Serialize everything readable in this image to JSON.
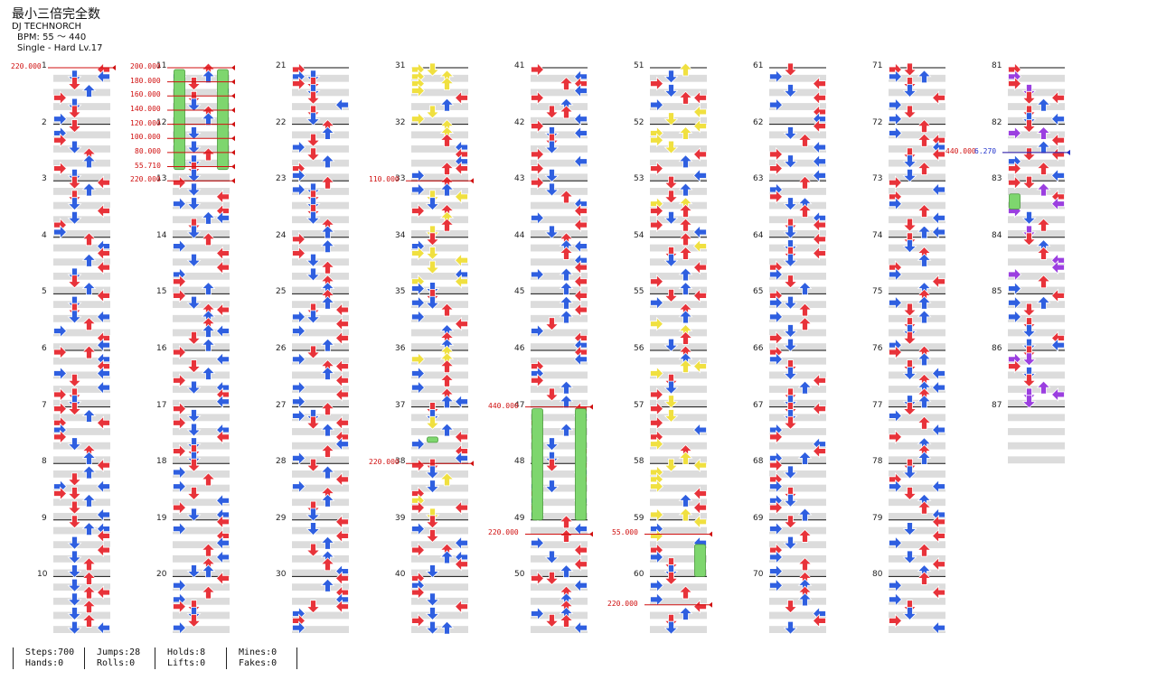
{
  "song": {
    "title": "最小三倍完全数",
    "artist": "DJ TECHNORCH",
    "bpm_text": "BPM: 55 ～ 440",
    "difficulty_text": "Single - Hard  Lv.17"
  },
  "measures": [
    "1",
    "2",
    "3",
    "4",
    "5",
    "6",
    "7",
    "8",
    "9",
    "10",
    "11",
    "12",
    "13",
    "14",
    "15",
    "16",
    "17",
    "18",
    "19",
    "20",
    "21",
    "22",
    "23",
    "24",
    "25",
    "26",
    "27",
    "28",
    "29",
    "30",
    "31",
    "32",
    "33",
    "34",
    "35",
    "36",
    "37",
    "38",
    "39",
    "40",
    "41",
    "42",
    "43",
    "44",
    "45",
    "46",
    "47",
    "48",
    "49",
    "50",
    "51",
    "52",
    "53",
    "54",
    "55",
    "56",
    "57",
    "58",
    "59",
    "60",
    "61",
    "62",
    "63",
    "64",
    "65",
    "66",
    "67",
    "68",
    "69",
    "70",
    "71",
    "72",
    "73",
    "74",
    "75",
    "76",
    "77",
    "78",
    "79",
    "80",
    "81",
    "82",
    "83",
    "84",
    "85",
    "86",
    "87"
  ],
  "bpm_changes": [
    {
      "label": "220.000",
      "measure": 0,
      "color": "red",
      "side": "left"
    },
    {
      "label": "200.000",
      "measure": 10.0,
      "color": "red",
      "side": "left"
    },
    {
      "label": "180.000",
      "measure": 10.25,
      "color": "red",
      "side": "left"
    },
    {
      "label": "160.000",
      "measure": 10.5,
      "color": "red",
      "side": "left"
    },
    {
      "label": "140.000",
      "measure": 10.75,
      "color": "red",
      "side": "left"
    },
    {
      "label": "120.000",
      "measure": 11.0,
      "color": "red",
      "side": "left"
    },
    {
      "label": "100.000",
      "measure": 11.25,
      "color": "red",
      "side": "left"
    },
    {
      "label": "80.000",
      "measure": 11.5,
      "color": "red",
      "side": "left"
    },
    {
      "label": "55.710",
      "measure": 11.75,
      "color": "red",
      "side": "left"
    },
    {
      "label": "220.000",
      "measure": 12.0,
      "color": "red",
      "side": "left"
    },
    {
      "label": "110.000",
      "measure": 32.0,
      "color": "red",
      "side": "left"
    },
    {
      "label": "220.000",
      "measure": 37.0,
      "color": "red",
      "side": "left"
    },
    {
      "label": "440.000",
      "measure": 46.0,
      "color": "red",
      "side": "left"
    },
    {
      "label": "220.000",
      "measure": 48.25,
      "color": "red",
      "side": "left"
    },
    {
      "label": "55.000",
      "measure": 58.25,
      "color": "red",
      "side": "left"
    },
    {
      "label": "220.000",
      "measure": 59.5,
      "color": "red",
      "side": "left"
    },
    {
      "label": "440.000",
      "measure": 81.5,
      "color": "red",
      "side": "left"
    },
    {
      "label": "6.270",
      "measure": 81.5,
      "color": "blue",
      "side": "left"
    }
  ],
  "stats": [
    {
      "top": "Steps:700",
      "bottom": "Hands:0"
    },
    {
      "top": "Jumps:28",
      "bottom": "Rolls:0"
    },
    {
      "top": "Holds:8",
      "bottom": "Lifts:0"
    },
    {
      "top": "Mines:0",
      "bottom": "Fakes:0"
    }
  ],
  "colors": {
    "quarter_note": "#e8333a",
    "eighth_note": "#2f5fe0",
    "sixteenth_note": "#f0e040",
    "twelfth_note": "#9b3fe0",
    "hold": "#7ed66e",
    "bpm_line": "#d01010",
    "stop_line": "#2233cc",
    "beat_band": "#dcdcdc"
  }
}
